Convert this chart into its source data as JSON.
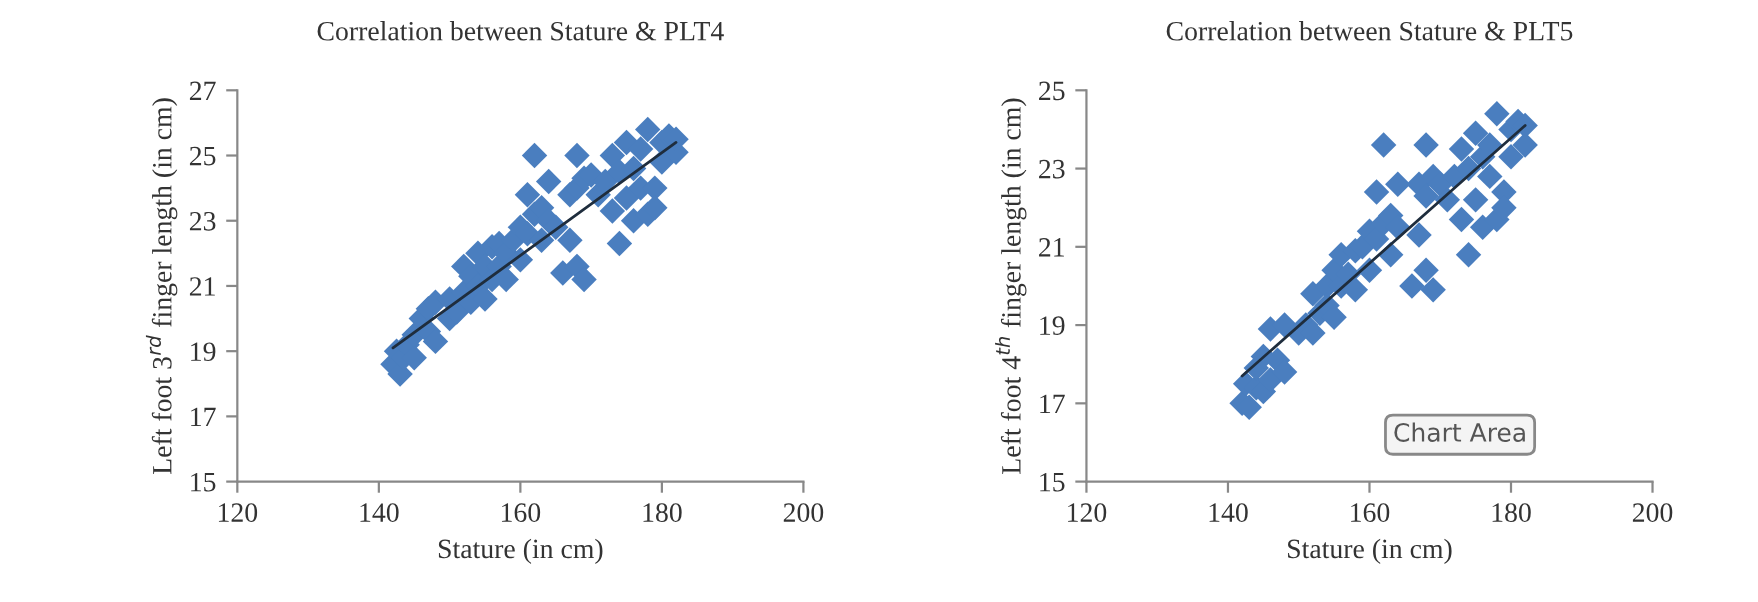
{
  "chart_data": [
    {
      "type": "scatter",
      "title": "Correlation between Stature & PLT4",
      "xlabel": "Stature (in cm)",
      "ylabel": "Left foot 3$^{rd}$ finger length (in cm)",
      "grid": false,
      "xlim": [
        120,
        200
      ],
      "xticks": [
        120,
        140,
        160,
        180,
        200
      ],
      "ylim": [
        15,
        27
      ],
      "yticks": [
        15,
        17,
        19,
        21,
        23,
        25,
        27
      ],
      "series": [
        {
          "marker": "diamond",
          "color": "#4a7ebf",
          "x": [
            142,
            142.5,
            143,
            143.5,
            144,
            145,
            145,
            146,
            147,
            147,
            148,
            148,
            150,
            150,
            151,
            152,
            152,
            153,
            153,
            154,
            154,
            155,
            155,
            156,
            156,
            157,
            157,
            158,
            158,
            159,
            160,
            160,
            161,
            161,
            162,
            162,
            163,
            163,
            164,
            164,
            165,
            166,
            167,
            167,
            168,
            168,
            168,
            169,
            169,
            170,
            171,
            172,
            173,
            173,
            174,
            174,
            175,
            175,
            176,
            176,
            177,
            177,
            178,
            178,
            179,
            179,
            180,
            180,
            181,
            182,
            182
          ],
          "values": [
            18.6,
            19,
            18.3,
            18.8,
            19.2,
            18.8,
            19.5,
            20,
            19.6,
            20.3,
            19.3,
            20.5,
            20,
            20.6,
            20.2,
            20.8,
            21.6,
            20.5,
            21.3,
            21,
            22,
            20.6,
            21.6,
            21.2,
            22.2,
            21.6,
            22.3,
            21.2,
            22,
            22.4,
            21.8,
            22.8,
            23.8,
            22.6,
            25,
            23.2,
            22.4,
            23.4,
            24.2,
            23,
            22.8,
            21.4,
            22.4,
            23.8,
            25,
            21.6,
            24,
            21.2,
            24.3,
            24.4,
            23.8,
            24.2,
            23.3,
            25,
            22.3,
            24.5,
            25.4,
            23.7,
            23,
            24.6,
            24,
            25.2,
            25.8,
            23.2,
            24,
            23.4,
            25.4,
            24.8,
            25.6,
            25.1,
            25.5
          ]
        },
        {
          "type": "line",
          "color": "#1f2d3d",
          "x": [
            142,
            182
          ],
          "values": [
            19.1,
            25.4
          ]
        }
      ]
    },
    {
      "type": "scatter",
      "title": "Correlation between Stature & PLT5",
      "xlabel": "Stature (in cm)",
      "ylabel": "Left foot 4$^{th}$ finger length (in cm)",
      "grid": false,
      "xlim": [
        120,
        200
      ],
      "xticks": [
        120,
        140,
        160,
        180,
        200
      ],
      "ylim": [
        15,
        25
      ],
      "yticks": [
        15,
        17,
        19,
        21,
        23,
        25
      ],
      "annotations": [
        "Chart Area"
      ],
      "series": [
        {
          "marker": "diamond",
          "color": "#4a7ebf",
          "x": [
            142,
            142.5,
            143,
            144,
            144,
            145,
            145,
            146,
            146,
            147,
            148,
            148,
            150,
            151,
            152,
            152,
            153,
            154,
            154,
            155,
            155,
            156,
            156,
            157,
            158,
            158,
            159,
            160,
            160,
            161,
            161,
            162,
            162,
            163,
            163,
            164,
            164,
            166,
            167,
            167,
            168,
            168,
            168,
            169,
            169,
            170,
            171,
            172,
            173,
            173,
            174,
            174,
            175,
            175,
            176,
            176,
            177,
            177,
            178,
            178,
            179,
            179,
            180,
            180,
            181,
            182,
            182
          ],
          "values": [
            17,
            17.5,
            16.9,
            17.4,
            17.9,
            17.3,
            18.2,
            18.9,
            17.6,
            18.1,
            17.8,
            19,
            18.8,
            19,
            18.8,
            19.8,
            19.3,
            20,
            19.5,
            20.4,
            19.2,
            20,
            20.8,
            20.3,
            20.9,
            19.9,
            21,
            20.4,
            21.4,
            22.4,
            21.2,
            23.6,
            21.6,
            20.8,
            21.8,
            22.6,
            21.5,
            20,
            21.3,
            22.6,
            23.6,
            20.4,
            22.3,
            19.9,
            22.8,
            22.6,
            22.2,
            22.8,
            21.7,
            23.5,
            20.8,
            23,
            23.9,
            22.2,
            21.5,
            23.3,
            22.8,
            23.6,
            24.4,
            21.7,
            22.4,
            22,
            23.3,
            24,
            24.2,
            23.6,
            24.1
          ]
        },
        {
          "type": "line",
          "color": "#1f2d3d",
          "x": [
            142,
            182
          ],
          "values": [
            17.7,
            24.1
          ]
        }
      ]
    }
  ]
}
